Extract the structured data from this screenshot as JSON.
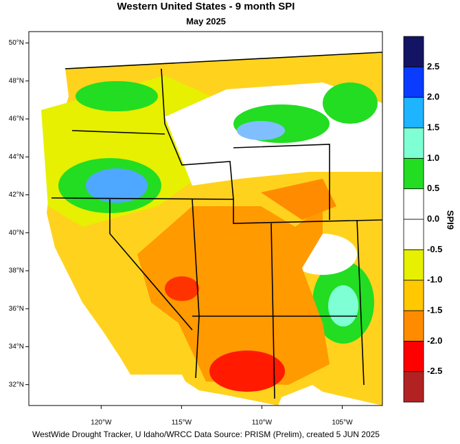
{
  "map": {
    "title": "Western United States - 9 month SPI",
    "subtitle": "May 2025",
    "lonlim": [
      -124.5,
      -102.5
    ],
    "latlim": [
      30.9,
      50.6
    ],
    "lat_ticks": [
      {
        "value": 50,
        "label": "50°N"
      },
      {
        "value": 48,
        "label": "48°N"
      },
      {
        "value": 46,
        "label": "46°N"
      },
      {
        "value": 44,
        "label": "44°N"
      },
      {
        "value": 42,
        "label": "42°N"
      },
      {
        "value": 40,
        "label": "40°N"
      },
      {
        "value": 38,
        "label": "38°N"
      },
      {
        "value": 36,
        "label": "36°N"
      },
      {
        "value": 34,
        "label": "34°N"
      },
      {
        "value": 32,
        "label": "32°N"
      }
    ],
    "lon_ticks": [
      {
        "value": -120,
        "label": "120°W"
      },
      {
        "value": -115,
        "label": "115°W"
      },
      {
        "value": -110,
        "label": "110°W"
      },
      {
        "value": -105,
        "label": "105°W"
      }
    ],
    "colorbar": {
      "title": "SPI9",
      "levels": [
        -2.5,
        -2,
        -1.5,
        -1,
        -0.5,
        {
          "value": 0,
          "label": "0.0"
        },
        0.5,
        {
          "value": 1,
          "label": "1.0"
        },
        1.5,
        {
          "value": 2,
          "label": "2.0"
        },
        2.5
      ],
      "level_labels_shown": [
        {
          "value": -2.5,
          "label": "-2.5"
        },
        {
          "value": -2,
          "label": "-2.0"
        },
        {
          "value": -1.5,
          "label": "-1.5"
        },
        {
          "value": -1,
          "label": "-1.0"
        },
        {
          "value": -0.5,
          "label": "-0.5"
        },
        {
          "value": 0,
          "label": "0.0"
        },
        {
          "value": 0.5,
          "label": "0.5"
        },
        {
          "value": 1,
          "label": "1.0"
        },
        {
          "value": 1.5,
          "label": "1.5"
        },
        {
          "value": 2,
          "label": "2.0"
        },
        {
          "value": 2.5,
          "label": "2.5"
        }
      ],
      "colors": [
        "#b22222",
        "#ff0000",
        "#ff8c00",
        "#ffc800",
        "#e6f000",
        "#ffffff",
        "#ffffff",
        "#22dd22",
        "#7fffd4",
        "#1eb4ff",
        "#0a3cff",
        "#141464"
      ]
    },
    "footer": "WestWide Drought Tracker, U Idaho/WRCC Data Source: PRISM (Prelim), created  5 JUN 2025"
  }
}
